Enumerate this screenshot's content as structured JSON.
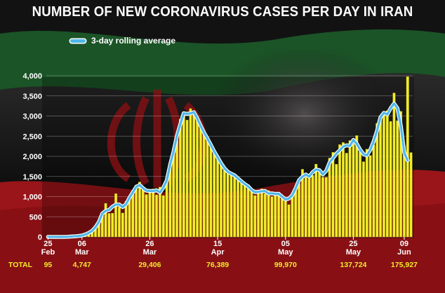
{
  "title": "NUMBER OF NEW CORONAVIRUS CASES PER DAY IN IRAN",
  "legend": {
    "label": "3-day rolling average"
  },
  "colors": {
    "bar": "#f2ec2a",
    "bar_edge": "#8a8410",
    "line": "#4fb7e8",
    "line_outline": "#ffffff",
    "flag_green": "#1f6b2f",
    "flag_red": "#b3161b",
    "total_text": "#f2ec2a"
  },
  "totals": {
    "label": "TOTAL",
    "values": [
      "95",
      "4,747",
      "29,406",
      "76,389",
      "99,970",
      "137,724",
      "175,927"
    ]
  },
  "chart_data": {
    "type": "bar",
    "title": "NUMBER OF NEW CORONAVIRUS CASES PER DAY IN IRAN",
    "xlabel": "",
    "ylabel": "",
    "ylim": [
      0,
      4000
    ],
    "yticks": [
      "0",
      "500",
      "1,000",
      "1,500",
      "2,000",
      "2,500",
      "3,000",
      "3,500",
      "4,000"
    ],
    "grid": true,
    "legend_position": "top-left",
    "x_ticks": [
      {
        "day": "25",
        "month": "Feb",
        "index": 0
      },
      {
        "day": "06",
        "month": "Mar",
        "index": 10
      },
      {
        "day": "26",
        "month": "Mar",
        "index": 30
      },
      {
        "day": "15",
        "month": "Apr",
        "index": 50
      },
      {
        "day": "05",
        "month": "May",
        "index": 70
      },
      {
        "day": "25",
        "month": "May",
        "index": 90
      },
      {
        "day": "09",
        "month": "Jun",
        "index": 105
      }
    ],
    "start_date": "2020-02-19",
    "series": [
      {
        "name": "",
        "kind": "bar",
        "values": [
          2,
          0,
          0,
          0,
          0,
          0,
          3,
          11,
          15,
          22,
          34,
          44,
          106,
          143,
          205,
          385,
          523,
          835,
          586,
          591,
          1076,
          743,
          595,
          881,
          958,
          1075,
          1289,
          1365,
          1209,
          1053,
          1178,
          1192,
          1046,
          1237,
          1028,
          1411,
          1762,
          2206,
          2389,
          2926,
          3076,
          2901,
          3186,
          3110,
          2988,
          2715,
          2560,
          2483,
          2274,
          2089,
          1997,
          1837,
          1657,
          1617,
          1574,
          1512,
          1499,
          1343,
          1294,
          1297,
          1168,
          1030,
          1134,
          1194,
          1073,
          1153,
          1001,
          1088,
          1112,
          1006,
          976,
          802,
          1075,
          1223,
          1323,
          1680,
          1481,
          1485,
          1529,
          1808,
          1683,
          1485,
          1481,
          1958,
          2102,
          1806,
          2294,
          2346,
          2080,
          2392,
          2311,
          2516,
          2111,
          1869,
          2180,
          2023,
          2282,
          2819,
          2979,
          3117,
          3134,
          2869,
          3574,
          2886,
          3117,
          2269,
          3980,
          2095
        ],
        "note_unused": ""
      },
      {
        "name": "3-day rolling average",
        "kind": "line",
        "values": [
          2,
          1,
          1,
          0,
          0,
          1,
          5,
          10,
          16,
          24,
          34,
          61,
          98,
          151,
          244,
          371,
          581,
          648,
          670,
          751,
          803,
          804,
          740,
          811,
          971,
          1107,
          1243,
          1288,
          1209,
          1147,
          1141,
          1139,
          1158,
          1104,
          1225,
          1400,
          1793,
          2119,
          2507,
          2797,
          3068,
          3054,
          3066,
          3095,
          2938,
          2754,
          2586,
          2439,
          2282,
          2120,
          1974,
          1830,
          1704,
          1616,
          1568,
          1528,
          1451,
          1379,
          1311,
          1253,
          1165,
          1111,
          1119,
          1134,
          1140,
          1076,
          1081,
          1067,
          1069,
          998,
          928,
          951,
          1033,
          1207,
          1409,
          1495,
          1549,
          1498,
          1607,
          1673,
          1658,
          1550,
          1641,
          1847,
          1955,
          2067,
          2149,
          2240,
          2273,
          2261,
          2406,
          2313,
          2165,
          2053,
          2024,
          2162,
          2373,
          2638,
          2970,
          3077,
          3040,
          3193,
          3310,
          3192,
          2757,
          2090,
          1900
        ]
      }
    ]
  }
}
